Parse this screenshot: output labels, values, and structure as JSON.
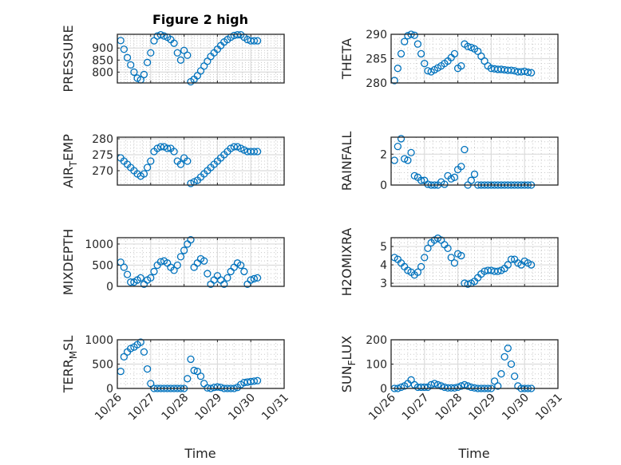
{
  "chart_data": [
    {
      "type": "scatter",
      "title": "Figure 2 high",
      "ylabel": "PRESSURE",
      "ylim": [
        755,
        957
      ],
      "yticks": [
        800,
        850,
        900
      ],
      "values": [
        931,
        895,
        860,
        830,
        800,
        775,
        768,
        790,
        840,
        880,
        930,
        950,
        955,
        950,
        945,
        935,
        920,
        880,
        850,
        890,
        870,
        760,
        770,
        785,
        805,
        825,
        845,
        865,
        880,
        895,
        910,
        925,
        935,
        945,
        952,
        955,
        955,
        945,
        935,
        930,
        930,
        930
      ]
    },
    {
      "type": "scatter",
      "title": "",
      "ylabel": "THETA",
      "ylim": [
        280,
        290
      ],
      "yticks": [
        280,
        285,
        290
      ],
      "values": [
        280.5,
        283,
        286,
        288.5,
        289.7,
        290,
        289.8,
        288,
        286,
        284,
        282.5,
        282.3,
        282.7,
        283.1,
        283.5,
        284,
        284.5,
        285.2,
        286,
        283,
        283.5,
        288,
        287.5,
        287.3,
        287,
        286.5,
        285.5,
        284.5,
        283.5,
        283,
        282.9,
        282.8,
        282.8,
        282.7,
        282.6,
        282.6,
        282.5,
        282.3,
        282.3,
        282.4,
        282.2,
        282.1
      ]
    },
    {
      "type": "scatter",
      "title": "",
      "ylabel": "AIR_TEMP",
      "ylim": [
        265.5,
        280.5
      ],
      "yticks": [
        270,
        275,
        280
      ],
      "values": [
        274,
        273,
        272,
        271,
        270,
        269,
        268.3,
        269,
        271,
        273,
        276,
        277,
        277.5,
        277.5,
        277,
        277,
        276,
        273,
        272,
        274,
        273,
        266,
        266.5,
        267,
        268,
        269,
        270,
        271,
        272,
        273,
        274,
        275,
        276,
        277,
        277.5,
        277.5,
        277,
        276.5,
        276,
        276,
        276,
        276
      ]
    },
    {
      "type": "scatter",
      "title": "",
      "ylabel": "RAINFALL",
      "ylim": [
        0,
        3.1
      ],
      "yticks": [
        0,
        2
      ],
      "values": [
        1.6,
        2.5,
        3.0,
        1.7,
        1.6,
        2.1,
        0.6,
        0.5,
        0.3,
        0.3,
        0.05,
        0,
        0,
        0,
        0.2,
        0.05,
        0.6,
        0.4,
        0.5,
        1.0,
        1.2,
        2.3,
        0,
        0.3,
        0.7,
        0,
        0,
        0,
        0,
        0,
        0,
        0,
        0,
        0,
        0,
        0,
        0,
        0,
        0,
        0,
        0,
        0
      ]
    },
    {
      "type": "scatter",
      "title": "",
      "ylabel": "MIXDEPTH",
      "ylim": [
        0,
        1150
      ],
      "yticks": [
        0,
        500,
        1000
      ],
      "values": [
        570,
        450,
        280,
        100,
        100,
        150,
        200,
        50,
        150,
        200,
        350,
        500,
        580,
        600,
        550,
        450,
        380,
        500,
        700,
        850,
        1000,
        1100,
        450,
        550,
        650,
        600,
        300,
        50,
        150,
        250,
        150,
        50,
        200,
        350,
        450,
        550,
        500,
        350,
        50,
        150,
        180,
        200
      ]
    },
    {
      "type": "scatter",
      "title": "",
      "ylabel": "H2OMIXRA",
      "ylim": [
        2.83,
        5.48
      ],
      "yticks": [
        3,
        4,
        5
      ],
      "values": [
        4.4,
        4.3,
        4.1,
        3.9,
        3.7,
        3.6,
        3.45,
        3.6,
        3.9,
        4.4,
        4.9,
        5.2,
        5.35,
        5.45,
        5.35,
        5.1,
        4.9,
        4.4,
        4.1,
        4.6,
        4.5,
        3.0,
        2.95,
        3.0,
        3.1,
        3.3,
        3.5,
        3.65,
        3.7,
        3.7,
        3.65,
        3.65,
        3.7,
        3.8,
        4.0,
        4.3,
        4.3,
        4.1,
        4.0,
        4.2,
        4.1,
        4.0
      ]
    },
    {
      "type": "scatter",
      "title": "",
      "ylabel": "TERR_MSL",
      "ylim": [
        0,
        1000
      ],
      "yticks": [
        0,
        500,
        1000
      ],
      "values": [
        350,
        650,
        750,
        820,
        850,
        900,
        950,
        750,
        400,
        100,
        0,
        0,
        0,
        0,
        0,
        0,
        0,
        0,
        0,
        0,
        200,
        600,
        370,
        350,
        250,
        100,
        10,
        0,
        20,
        30,
        20,
        0,
        0,
        0,
        0,
        20,
        80,
        120,
        130,
        140,
        150,
        160
      ]
    },
    {
      "type": "scatter",
      "title": "",
      "ylabel": "SUN_FLUX",
      "ylim": [
        0,
        200
      ],
      "yticks": [
        0,
        100,
        200
      ],
      "values": [
        0,
        0,
        5,
        10,
        20,
        35,
        15,
        5,
        5,
        5,
        5,
        15,
        20,
        15,
        10,
        5,
        2,
        2,
        2,
        5,
        10,
        15,
        10,
        5,
        2,
        0,
        0,
        0,
        0,
        0,
        30,
        10,
        60,
        130,
        165,
        100,
        50,
        10,
        0,
        0,
        0,
        0
      ]
    }
  ],
  "x_days_since_10_26": [
    0.1,
    0.2,
    0.3,
    0.4,
    0.5,
    0.6,
    0.7,
    0.8,
    0.9,
    1.0,
    1.1,
    1.2,
    1.3,
    1.4,
    1.5,
    1.6,
    1.7,
    1.8,
    1.9,
    2.0,
    2.1,
    2.2,
    2.3,
    2.4,
    2.5,
    2.6,
    2.7,
    2.8,
    2.9,
    3.0,
    3.1,
    3.2,
    3.3,
    3.4,
    3.5,
    3.6,
    3.7,
    3.8,
    3.9,
    4.0,
    4.1,
    4.2
  ],
  "xlim_days": [
    0,
    5
  ],
  "xticklabels": [
    "10/26",
    "10/27",
    "10/28",
    "10/29",
    "10/30",
    "10/31"
  ],
  "xlabel": "Time",
  "grid": "on (major + minor)",
  "colors": {
    "marker": "#0072BD",
    "axis": "#262626",
    "grid": "#dcdcdc"
  }
}
